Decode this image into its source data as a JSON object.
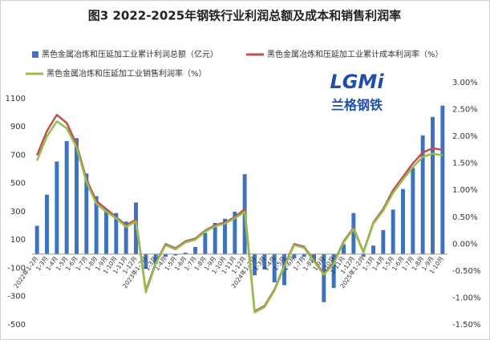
{
  "chart_data": {
    "type": "bar_line_dual",
    "title": "图3 2022-2025年钢铁行业利润总额及成本和销售利润率",
    "watermark": {
      "logo": "LGMi",
      "text": "兰格钢铁"
    },
    "categories": [
      "2022年1-2月",
      "1-3月",
      "1-4月",
      "1-5月",
      "1-6月",
      "1-7月",
      "1-8月",
      "1-9月",
      "1-10月",
      "1-11月",
      "1-12月",
      "2023年1-2月",
      "1-3月",
      "1-4月",
      "1-5月",
      "1-6月",
      "1-7月",
      "1-8月",
      "1-9月",
      "1-10月",
      "1-11月",
      "1-12月",
      "2024年1-2月",
      "1-3月",
      "1-4月",
      "1-5月",
      "1-6月",
      "1-7月",
      "1-8月",
      "1-9月",
      "1-10月",
      "1-11月",
      "1-12月",
      "2025年1-2月",
      "1-3月",
      "1-4月",
      "1-5月",
      "1-6月",
      "1-7月",
      "1-8月",
      "1-9月",
      "1-10月"
    ],
    "series": [
      {
        "name": "黑色金属冶炼和压延加工业累计利润总额（亿元）",
        "color": "#3d72bd",
        "kind": "bar",
        "values": [
          200,
          420,
          655,
          800,
          820,
          570,
          410,
          310,
          290,
          230,
          365,
          -105,
          -70,
          -20,
          -10,
          10,
          50,
          150,
          220,
          250,
          300,
          565,
          -150,
          -110,
          -200,
          -220,
          -30,
          -20,
          -60,
          -340,
          -240,
          70,
          290,
          -20,
          60,
          170,
          315,
          460,
          610,
          840,
          970,
          1050
        ]
      },
      {
        "name": "黑色金属冶炼和压延加工业累计成本利润率（%）",
        "color": "#c0504d",
        "kind": "line",
        "axis": "y2",
        "values": [
          1.65,
          2.1,
          2.4,
          2.25,
          1.85,
          1.2,
          0.8,
          0.65,
          0.5,
          0.35,
          0.45,
          -0.87,
          -0.35,
          0.0,
          -0.08,
          0.05,
          0.1,
          0.25,
          0.35,
          0.4,
          0.5,
          0.65,
          -1.25,
          -1.15,
          -0.85,
          -0.4,
          0.0,
          -0.05,
          -0.3,
          -0.55,
          -0.35,
          0.05,
          0.3,
          -0.15,
          0.4,
          0.65,
          1.0,
          1.25,
          1.5,
          1.7,
          1.78,
          1.75
        ]
      },
      {
        "name": "黑色金属冶炼和压延加工业销售利润率（%）",
        "color": "#92c050",
        "kind": "line",
        "axis": "y2",
        "values": [
          1.55,
          2.0,
          2.28,
          2.15,
          1.8,
          1.15,
          0.75,
          0.6,
          0.48,
          0.32,
          0.42,
          -0.9,
          -0.37,
          -0.02,
          -0.1,
          0.03,
          0.08,
          0.23,
          0.33,
          0.38,
          0.48,
          0.6,
          -1.27,
          -1.17,
          -0.87,
          -0.42,
          -0.02,
          -0.07,
          -0.32,
          -0.57,
          -0.37,
          0.03,
          0.28,
          -0.16,
          0.38,
          0.62,
          0.95,
          1.2,
          1.43,
          1.62,
          1.68,
          1.65
        ]
      }
    ],
    "ylim": [
      -500,
      1213
    ],
    "yticks": [
      -500,
      -300,
      -100,
      100,
      300,
      500,
      700,
      900,
      1100
    ],
    "y2lim": [
      -1.5,
      3.0
    ],
    "y2ticks": [
      {
        "value": -1.5,
        "label": "-1.50%"
      },
      {
        "value": -1.0,
        "label": "-1.00%"
      },
      {
        "value": -0.5,
        "label": "-0.50%"
      },
      {
        "value": 0,
        "label": "0.00%"
      },
      {
        "value": 0.5,
        "label": "0.50%"
      },
      {
        "value": 1.0,
        "label": "1.00%"
      },
      {
        "value": 1.5,
        "label": "1.50%"
      },
      {
        "value": 2.0,
        "label": "2.00%"
      },
      {
        "value": 2.5,
        "label": "2.50%"
      },
      {
        "value": 3.0,
        "label": "3.00%"
      }
    ],
    "grid": false
  }
}
